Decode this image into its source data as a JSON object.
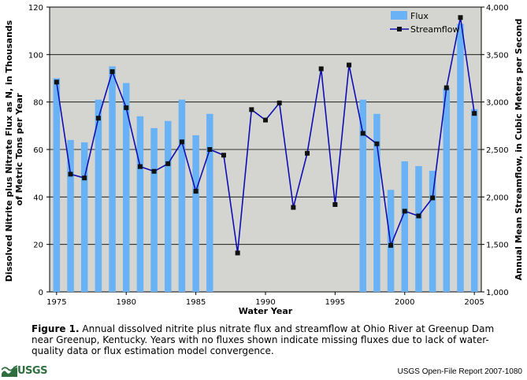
{
  "chart_data": {
    "type": "bar+line",
    "x": [
      1975,
      1976,
      1977,
      1978,
      1979,
      1980,
      1981,
      1982,
      1983,
      1984,
      1985,
      1986,
      1987,
      1988,
      1989,
      1990,
      1991,
      1992,
      1993,
      1994,
      1995,
      1996,
      1997,
      1998,
      1999,
      2000,
      2001,
      2002,
      2003,
      2004,
      2005
    ],
    "series": [
      {
        "name": "Flux",
        "axis": "left",
        "type": "bar",
        "color": "#6ab2f6",
        "values": [
          90,
          64,
          63,
          81,
          95,
          88,
          74,
          69,
          72,
          81,
          66,
          75,
          null,
          null,
          null,
          null,
          null,
          null,
          null,
          null,
          null,
          null,
          81,
          75,
          43,
          55,
          53,
          51,
          86,
          113,
          77
        ]
      },
      {
        "name": "Streamflow",
        "axis": "right",
        "type": "line",
        "color": "#0f0fb4",
        "values": [
          3210,
          2240,
          2200,
          2830,
          3320,
          2940,
          2320,
          2270,
          2350,
          2580,
          2060,
          2500,
          2440,
          1410,
          2920,
          2810,
          2990,
          1890,
          2460,
          3350,
          1920,
          3390,
          2670,
          2560,
          1490,
          1850,
          1800,
          1990,
          3150,
          3890,
          2880
        ]
      }
    ],
    "xlabel": "Water Year",
    "ylabel_left": "Dissolved Nitrite plus Nitrate Flux as N, in Thousands of Metric Tons per Year",
    "ylabel_left_lines": [
      "Dissolved Nitrite plus Nitrate Flux as N, in Thousands",
      "of Metric Tons per Year"
    ],
    "ylabel_right": "Annual Mean Streamflow, in Cubic Meters per Second",
    "xlim": [
      1974.5,
      2005.5
    ],
    "ylim_left": [
      0,
      120
    ],
    "ylim_right": [
      1000,
      4000
    ],
    "xticks": [
      "1975",
      "1980",
      "1985",
      "1990",
      "1995",
      "2000",
      "2005"
    ],
    "xtick_values": [
      1975,
      1980,
      1985,
      1990,
      1995,
      2000,
      2005
    ],
    "yticks_left": [
      "0",
      "20",
      "40",
      "60",
      "80",
      "100",
      "120"
    ],
    "ytick_values_left": [
      0,
      20,
      40,
      60,
      80,
      100,
      120
    ],
    "yticks_right": [
      "1,000",
      "1,500",
      "2,000",
      "2,500",
      "3,000",
      "3,500",
      "4,000"
    ],
    "ytick_values_right": [
      1000,
      1500,
      2000,
      2500,
      3000,
      3500,
      4000
    ],
    "grid": true,
    "legend_position": "top-right",
    "legend": [
      "Flux",
      "Streamflow"
    ],
    "plot_background": "#d4d4d0"
  },
  "caption": {
    "label": "Figure 1.",
    "text": " Annual dissolved nitrite plus nitrate flux and streamflow at Ohio River at Greenup Dam near Greenup, Kentucky. Years with no fluxes shown indicate missing fluxes due to lack of water-quality data or flux estimation model convergence."
  },
  "footer": {
    "logo_text": "USGS",
    "logo_color": "#2f6f3f",
    "report": "USGS Open-File Report 2007-1080"
  }
}
